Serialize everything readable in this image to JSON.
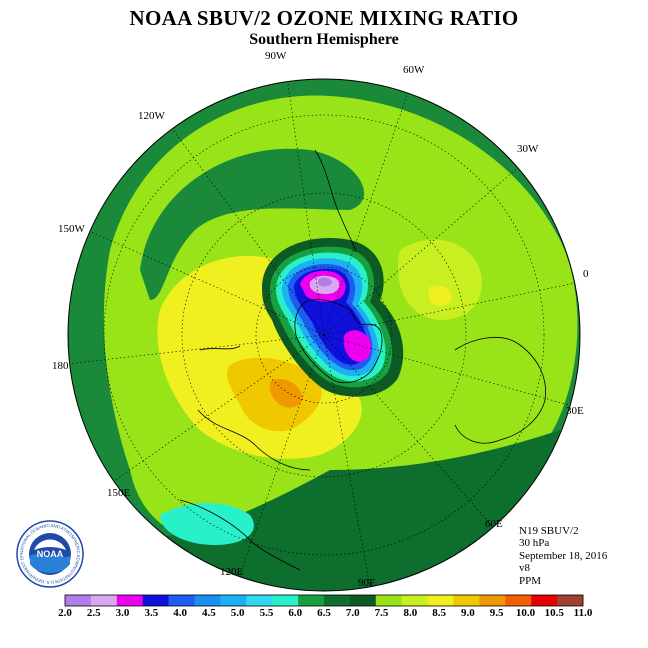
{
  "header": {
    "title": "NOAA SBUV/2 OZONE MIXING RATIO",
    "subtitle": "Southern Hemisphere"
  },
  "map": {
    "projection": "polar stereographic",
    "hemisphere": "south",
    "longitude_labels": [
      "90W",
      "60W",
      "30W",
      "0",
      "30E",
      "60E",
      "90E",
      "120E",
      "150E",
      "180",
      "150W",
      "120W"
    ]
  },
  "info": {
    "instrument": "N19 SBUV/2",
    "level": "30 hPa",
    "date": "September 18, 2016",
    "version": "v8",
    "units": "PPM"
  },
  "colorbar": {
    "ticks": [
      "2.0",
      "2.5",
      "3.0",
      "3.5",
      "4.0",
      "4.5",
      "5.0",
      "5.5",
      "6.0",
      "6.5",
      "7.0",
      "7.5",
      "8.0",
      "8.5",
      "9.0",
      "9.5",
      "10.0",
      "10.5",
      "11.0"
    ],
    "colors": [
      "#b07ee8",
      "#d9a8f0",
      "#ee00ee",
      "#1010dd",
      "#1c5cf0",
      "#1890f0",
      "#1cb0f4",
      "#30d8f0",
      "#28f0c8",
      "#18a040",
      "#0e6e2e",
      "#0c5a24",
      "#98e418",
      "#c8f020",
      "#f0f020",
      "#f0c800",
      "#f09800",
      "#f06000",
      "#e80000",
      "#a04030"
    ]
  },
  "logo": {
    "text": "NOAA",
    "ring_text": "NATIONAL OCEANIC AND ATMOSPHERIC ADMINISTRATION U.S. DEPARTMENT OF COMMERCE"
  }
}
